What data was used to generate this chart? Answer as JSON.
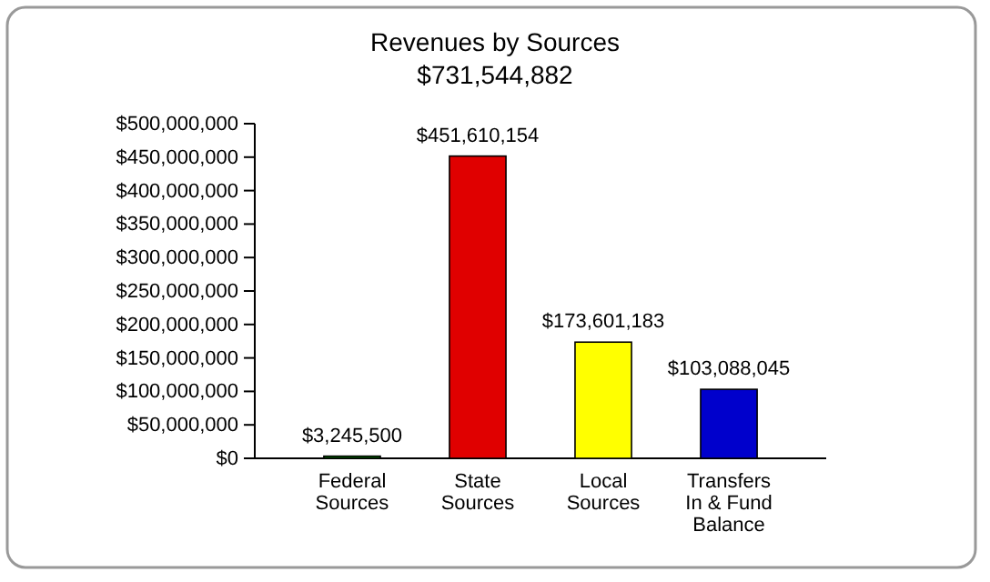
{
  "chart_data": {
    "type": "bar",
    "title": "Revenues by Sources",
    "subtitle": "$731,544,882",
    "categories": [
      "Federal Sources",
      "State Sources",
      "Local Sources",
      "Transfers In & Fund Balance"
    ],
    "values": [
      3245500,
      451610154,
      173601183,
      103088045
    ],
    "colors": [
      "#008000",
      "#e00000",
      "#ffff00",
      "#0000cc"
    ],
    "value_labels": [
      "$3,245,500",
      "$451,610,154",
      "$173,601,183",
      "$103,088,045"
    ],
    "ylim": [
      0,
      500000000
    ],
    "yticks": [
      {
        "value": 0,
        "label": "$0"
      },
      {
        "value": 50000000,
        "label": "$50,000,000"
      },
      {
        "value": 100000000,
        "label": "$100,000,000"
      },
      {
        "value": 150000000,
        "label": "$150,000,000"
      },
      {
        "value": 200000000,
        "label": "$200,000,000"
      },
      {
        "value": 250000000,
        "label": "$250,000,000"
      },
      {
        "value": 300000000,
        "label": "$300,000,000"
      },
      {
        "value": 350000000,
        "label": "$350,000,000"
      },
      {
        "value": 400000000,
        "label": "$400,000,000"
      },
      {
        "value": 450000000,
        "label": "$450,000,000"
      },
      {
        "value": 500000000,
        "label": "$500,000,000"
      }
    ]
  }
}
